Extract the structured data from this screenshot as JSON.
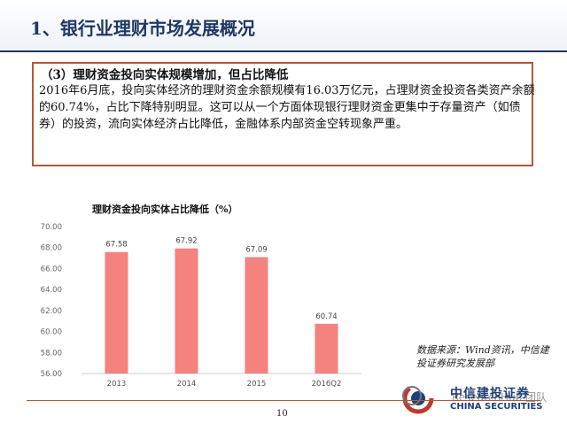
{
  "slide": {
    "title": "1、银行业理财市场发展概况",
    "box_heading": "（3）理财资金投向实体规模增加，但占比降低",
    "box_body": "2016年6月底，投向实体经济的理财资金余额规模有16.03万亿元，占理财资金投资各类资产余额的60.74%，占比下降特别明显。这可以从一个方面体现银行理财资金更集中于存量资产（如债券）的投资，流向实体经济占比降低，金融体系内部资金空转现象严重。",
    "source": "数据来源：Wind资讯，中信建投证券研究发展部",
    "page_number": "10",
    "logo_cn": "中信建投证券",
    "logo_en": "CHINA SECURITIES",
    "watermark": "ResearchHub 团队"
  },
  "chart_data": {
    "type": "bar",
    "title": "理财资金投向实体占比降低（%）",
    "categories": [
      "2013",
      "2014",
      "2015",
      "2016Q2"
    ],
    "values": [
      67.58,
      67.92,
      67.09,
      60.74
    ],
    "value_labels": [
      "67.58",
      "67.92",
      "67.09",
      "60.74"
    ],
    "ylim": [
      56,
      70
    ],
    "yticks": [
      "56.00",
      "58.00",
      "60.00",
      "62.00",
      "64.00",
      "66.00",
      "68.00",
      "70.00"
    ],
    "bar_color": "#f4827f",
    "grid": false,
    "legend": "none"
  }
}
